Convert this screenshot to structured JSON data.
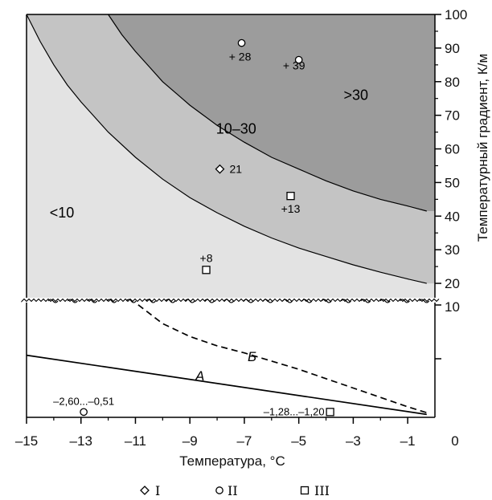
{
  "chart_data": {
    "type": "area",
    "xlabel": "Температура, °C",
    "ylabel": "Температурный градиент, К/м",
    "xlim": [
      -15,
      0
    ],
    "x_ticks": [
      "–15",
      "–13",
      "–11",
      "–9",
      "–7",
      "–5",
      "–3",
      "–1",
      "0"
    ],
    "upper": {
      "ylim": [
        15,
        100
      ],
      "y_ticks": [
        "20",
        "30",
        "40",
        "50",
        "60",
        "70",
        "80",
        "90",
        "100"
      ],
      "regions": [
        {
          "label": "<10",
          "color": "#e3e3e3",
          "x": -13.7,
          "y": 41
        },
        {
          "label": "10–30",
          "color": "#c4c4c4",
          "x": -7.3,
          "y": 66
        },
        {
          "label": ">30",
          "color": "#9c9c9c",
          "x": -2.9,
          "y": 76
        }
      ],
      "boundaries": [
        {
          "name": "10 K/m boundary",
          "x": [
            -15.0,
            -14.5,
            -14.0,
            -13.5,
            -13.0,
            -12.0,
            -11.0,
            -10.0,
            -9.0,
            -8.0,
            -7.0,
            -6.0,
            -5.0,
            -4.0,
            -3.0,
            -2.0,
            -1.0,
            -0.3
          ],
          "y": [
            100,
            92,
            85,
            79,
            74,
            65,
            57.5,
            51,
            45.5,
            41,
            37,
            33.5,
            30.5,
            28,
            25.5,
            23.3,
            21.3,
            20
          ]
        },
        {
          "name": "30 K/m boundary",
          "x": [
            -12.0,
            -11.5,
            -11.0,
            -10.5,
            -10.0,
            -9.5,
            -9.0,
            -8.5,
            -8.0,
            -7.0,
            -6.0,
            -5.0,
            -4.0,
            -3.0,
            -2.0,
            -1.0,
            -0.3
          ],
          "y": [
            100,
            94,
            89,
            84.5,
            80,
            76.5,
            73,
            70,
            67,
            62,
            57.5,
            54,
            50.5,
            47.5,
            45,
            43,
            41.5
          ]
        }
      ],
      "points": [
        {
          "group": "I",
          "marker": "diamond",
          "x": -7.9,
          "y": 54,
          "label": "21"
        },
        {
          "group": "II",
          "marker": "circle",
          "x": -7.1,
          "y": 91.5,
          "label": "+ 28"
        },
        {
          "group": "II",
          "marker": "circle",
          "x": -5.0,
          "y": 86.5,
          "label": "+ 39"
        },
        {
          "group": "III",
          "marker": "square",
          "x": -5.3,
          "y": 46,
          "label": "+13"
        },
        {
          "group": "III",
          "marker": "square",
          "x": -8.4,
          "y": 24,
          "label": "+8"
        }
      ]
    },
    "lower": {
      "y_ticks": [
        "10",
        "0"
      ],
      "series": [
        {
          "name": "А",
          "style": "solid",
          "x": [
            -15,
            -0.3
          ],
          "y": [
            5.3,
            0.25
          ]
        },
        {
          "name": "Б",
          "style": "dashed",
          "x": [
            -10.9,
            -10.0,
            -9.0,
            -8.0,
            -7.0,
            -6.0,
            -5.0,
            -4.0,
            -3.0,
            -2.0,
            -1.0,
            -0.3
          ],
          "y": [
            9.6,
            8.0,
            6.9,
            6.1,
            5.5,
            4.8,
            4.1,
            3.3,
            2.5,
            1.7,
            0.9,
            0.4
          ]
        }
      ],
      "points": [
        {
          "group": "II",
          "marker": "circle",
          "x": -12.9,
          "y": 0.25,
          "label": "–2,60...–0,51"
        },
        {
          "group": "III",
          "marker": "square",
          "x": -3.85,
          "y": 0.25,
          "label": "–1,28...–1,20"
        }
      ]
    },
    "legend": [
      {
        "marker": "diamond",
        "label": "I"
      },
      {
        "marker": "circle",
        "label": "II"
      },
      {
        "marker": "square",
        "label": "III"
      }
    ]
  }
}
